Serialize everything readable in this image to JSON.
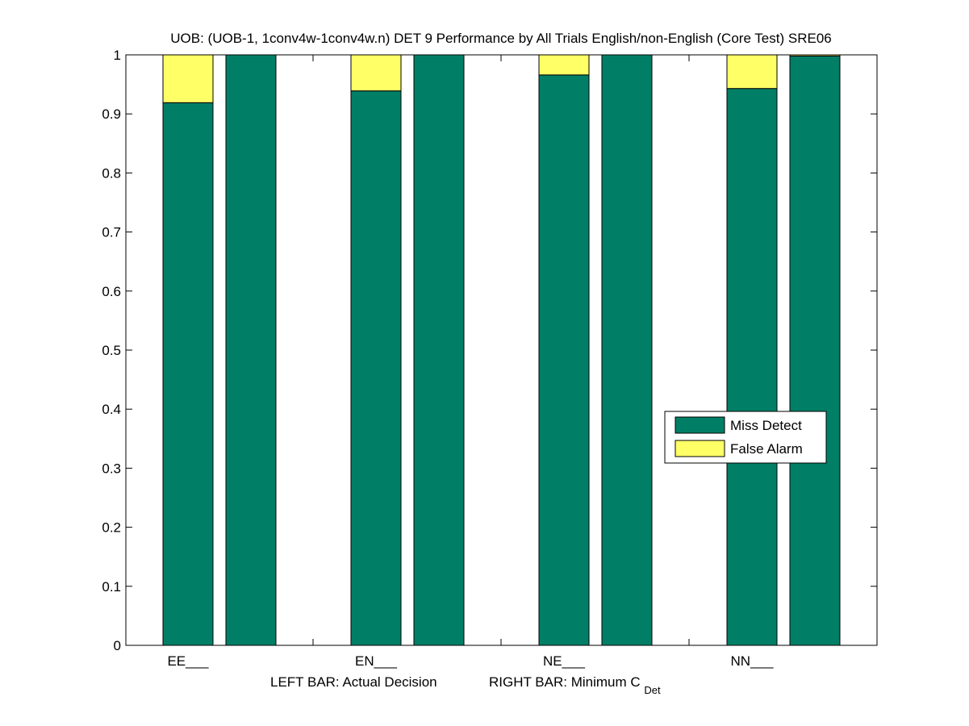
{
  "chart_data": {
    "type": "bar",
    "stacked": true,
    "title": "UOB: (UOB-1, 1conv4w-1conv4w.n) DET 9 Performance by All Trials English/non-English (Core Test) SRE06",
    "xlabel_left": "LEFT BAR: Actual Decision",
    "xlabel_right": "RIGHT BAR: Minimum C",
    "xlabel_subscript": "Det",
    "categories": [
      "EE___",
      "EN___",
      "NE___",
      "NN___"
    ],
    "bars_per_category": [
      "Actual Decision",
      "Minimum CDet"
    ],
    "series": [
      {
        "name": "Miss Detect",
        "color": "#007f66",
        "actual": [
          0.919,
          0.939,
          0.966,
          0.943
        ],
        "minimum": [
          1.0,
          1.0,
          1.0,
          0.998
        ]
      },
      {
        "name": "False Alarm",
        "color": "#ffff66",
        "actual": [
          0.081,
          0.061,
          0.034,
          0.057
        ],
        "minimum": [
          0.0,
          0.0,
          0.0,
          0.002
        ]
      }
    ],
    "ylim": [
      0,
      1
    ],
    "yticks": [
      "0",
      "0.1",
      "0.2",
      "0.3",
      "0.4",
      "0.5",
      "0.6",
      "0.7",
      "0.8",
      "0.9",
      "1"
    ],
    "grid": false,
    "legend_position": "right-middle"
  }
}
